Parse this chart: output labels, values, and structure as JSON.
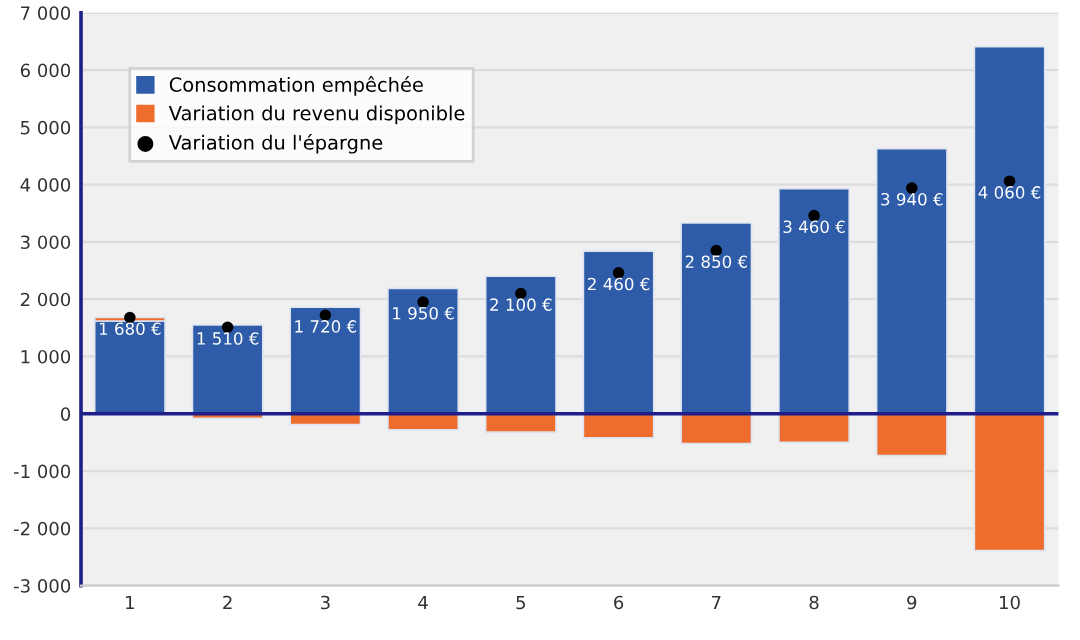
{
  "chart_data": {
    "type": "bar",
    "stacked": true,
    "categories": [
      "1",
      "2",
      "3",
      "4",
      "5",
      "6",
      "7",
      "8",
      "9",
      "10"
    ],
    "series": [
      {
        "name": "Consommation empêchée",
        "color": "#2e5ca8",
        "values": [
          1620,
          1550,
          1860,
          2190,
          2400,
          2840,
          3330,
          3930,
          4630,
          6410
        ]
      },
      {
        "name": "Variation du revenu disponible",
        "color": "#ee6d2d",
        "values": [
          60,
          -80,
          -190,
          -280,
          -320,
          -420,
          -520,
          -500,
          -730,
          -2390
        ]
      },
      {
        "name": "Variation du l'épargne",
        "type": "scatter",
        "color": "#000000",
        "values": [
          1680,
          1510,
          1720,
          1950,
          2100,
          2460,
          2850,
          3460,
          3940,
          4060
        ],
        "value_labels": [
          "1 680 €",
          "1 510 €",
          "1 720 €",
          "1 950 €",
          "2 100 €",
          "2 460 €",
          "2 850 €",
          "3 460 €",
          "3 940 €",
          "4 060 €"
        ]
      }
    ],
    "ylim": [
      -3000,
      7000
    ],
    "yticks": [
      {
        "value": -3000,
        "label": "-3 000"
      },
      {
        "value": -2000,
        "label": "-2 000"
      },
      {
        "value": -1000,
        "label": "-1 000"
      },
      0,
      {
        "value": 1000,
        "label": "1 000"
      },
      {
        "value": 2000,
        "label": "2 000"
      },
      {
        "value": 3000,
        "label": "3 000"
      },
      {
        "value": 4000,
        "label": "4 000"
      },
      {
        "value": 5000,
        "label": "5 000"
      },
      {
        "value": 6000,
        "label": "6 000"
      },
      {
        "value": 7000,
        "label": "7 000"
      }
    ],
    "ref_lines": [
      {
        "axis": "y",
        "value": 0,
        "color": "#1f1f8c"
      }
    ],
    "grid": "y",
    "legend": "top left",
    "marker": "circle"
  }
}
